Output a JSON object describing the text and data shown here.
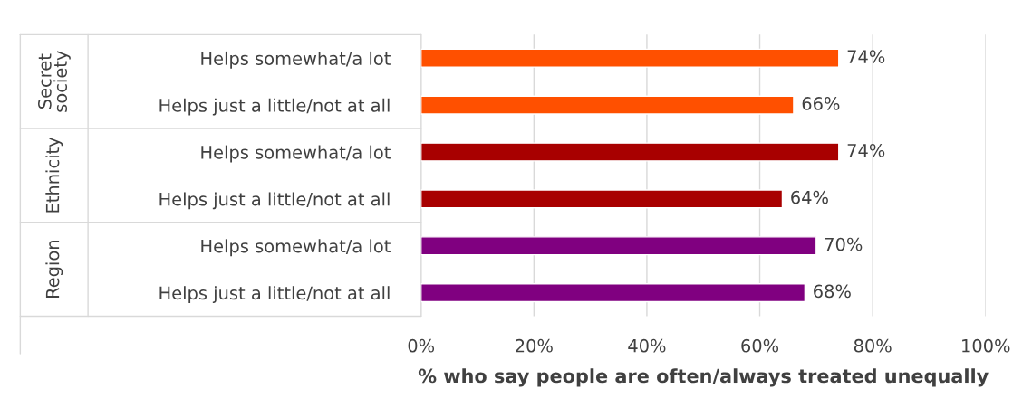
{
  "chart_data": {
    "type": "bar",
    "orientation": "horizontal",
    "xlabel": "% who say people are often/always treated unequally",
    "categories": [
      "Helps somewhat/a lot",
      "Helps just a little/not at all",
      "Helps somewhat/a lot",
      "Helps just a little/not at all",
      "Helps somewhat/a lot",
      "Helps just a little/not at all"
    ],
    "values": [
      74,
      66,
      74,
      64,
      70,
      68
    ],
    "colors": [
      "#ff5000",
      "#ff5000",
      "#a80000",
      "#a80000",
      "#800080",
      "#800080"
    ],
    "value_labels": [
      "74%",
      "66%",
      "74%",
      "64%",
      "70%",
      "68%"
    ],
    "annotations": [
      "Secret society",
      "Ethnicity",
      "Region"
    ],
    "xlim": [
      0,
      100
    ],
    "xticks": [
      {
        "value": 0,
        "label": "0%"
      },
      {
        "value": 20,
        "label": "20%"
      },
      {
        "value": 40,
        "label": "40%"
      },
      {
        "value": 60,
        "label": "60%"
      },
      {
        "value": 80,
        "label": "80%"
      },
      {
        "value": 100,
        "label": "100%"
      }
    ],
    "grid": "x",
    "legend": false
  }
}
